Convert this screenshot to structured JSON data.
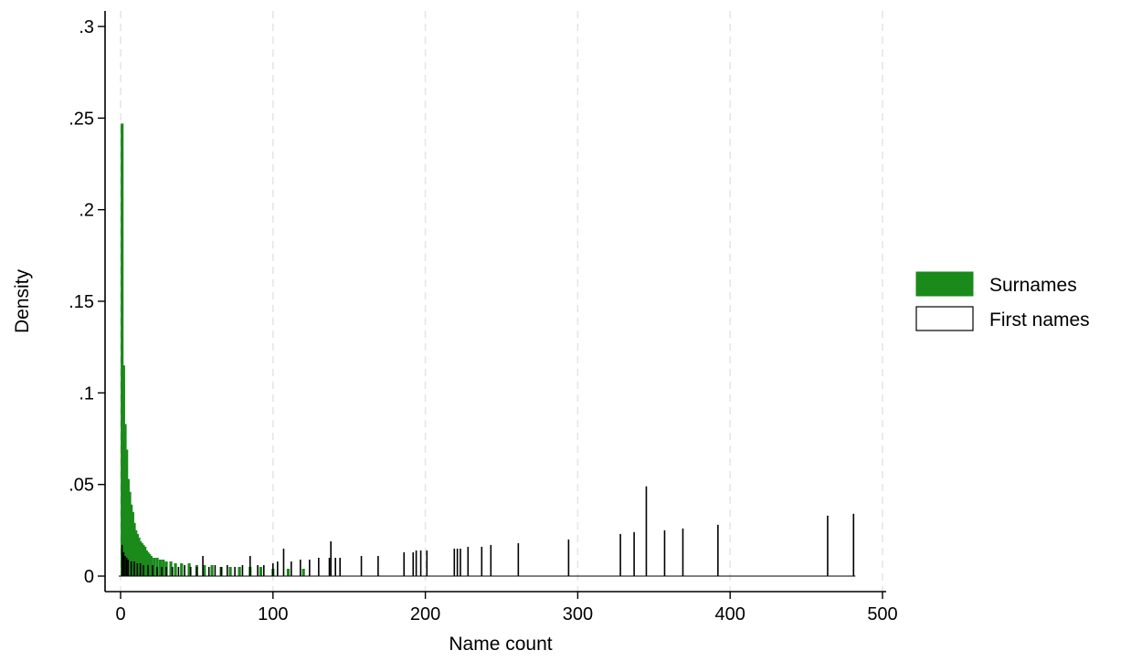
{
  "chart_data": {
    "type": "bar",
    "xlabel": "Name count",
    "ylabel": "Density",
    "xlim": [
      -10,
      505
    ],
    "ylim": [
      -0.009,
      0.309
    ],
    "xticks": [
      0,
      100,
      200,
      300,
      400,
      500
    ],
    "xtick_labels": [
      "0",
      "100",
      "200",
      "300",
      "400",
      "500"
    ],
    "yticks": [
      0,
      0.05,
      0.1,
      0.15,
      0.2,
      0.25,
      0.3
    ],
    "ytick_labels": [
      "0",
      ".05",
      ".1",
      ".15",
      ".2",
      ".25",
      ".3"
    ],
    "grid": "vertical dashed at x ticks",
    "legend": "right",
    "series": [
      {
        "name": "Surnames",
        "color": "#1a8a1a",
        "style": "filled",
        "x": [
          1,
          2,
          3,
          4,
          5,
          6,
          7,
          8,
          9,
          10,
          11,
          12,
          13,
          14,
          15,
          16,
          17,
          18,
          19,
          20,
          22,
          24,
          26,
          28,
          30,
          33,
          36,
          40,
          45,
          50,
          55,
          60,
          66,
          72,
          78,
          85,
          92,
          100,
          110,
          120
        ],
        "values": [
          0.247,
          0.115,
          0.083,
          0.069,
          0.053,
          0.046,
          0.039,
          0.035,
          0.029,
          0.025,
          0.023,
          0.021,
          0.019,
          0.018,
          0.017,
          0.016,
          0.014,
          0.013,
          0.012,
          0.011,
          0.01,
          0.01,
          0.009,
          0.009,
          0.008,
          0.008,
          0.007,
          0.007,
          0.007,
          0.006,
          0.006,
          0.006,
          0.005,
          0.005,
          0.005,
          0.005,
          0.005,
          0.004,
          0.004,
          0.004
        ]
      },
      {
        "name": "First names",
        "color": "#000000",
        "style": "outline",
        "x": [
          1,
          2,
          3,
          4,
          5,
          7,
          9,
          11,
          13,
          15,
          18,
          21,
          24,
          27,
          30,
          34,
          38,
          42,
          46,
          50,
          54,
          58,
          62,
          66,
          70,
          75,
          80,
          85,
          90,
          94,
          100,
          103,
          107,
          112,
          118,
          124,
          130,
          137,
          138,
          141,
          144,
          158,
          169,
          186,
          192,
          194,
          197,
          201,
          219,
          221,
          223,
          228,
          237,
          243,
          261,
          294,
          328,
          337,
          345,
          357,
          369,
          392,
          464,
          481
        ],
        "values": [
          0.017,
          0.013,
          0.011,
          0.01,
          0.009,
          0.008,
          0.008,
          0.007,
          0.007,
          0.006,
          0.006,
          0.006,
          0.005,
          0.005,
          0.005,
          0.005,
          0.005,
          0.006,
          0.005,
          0.005,
          0.011,
          0.005,
          0.006,
          0.005,
          0.006,
          0.005,
          0.006,
          0.011,
          0.006,
          0.006,
          0.007,
          0.008,
          0.015,
          0.008,
          0.009,
          0.009,
          0.01,
          0.01,
          0.019,
          0.01,
          0.01,
          0.011,
          0.011,
          0.013,
          0.013,
          0.014,
          0.014,
          0.014,
          0.015,
          0.015,
          0.015,
          0.016,
          0.016,
          0.017,
          0.018,
          0.02,
          0.023,
          0.024,
          0.049,
          0.025,
          0.026,
          0.028,
          0.033,
          0.034
        ]
      }
    ]
  }
}
